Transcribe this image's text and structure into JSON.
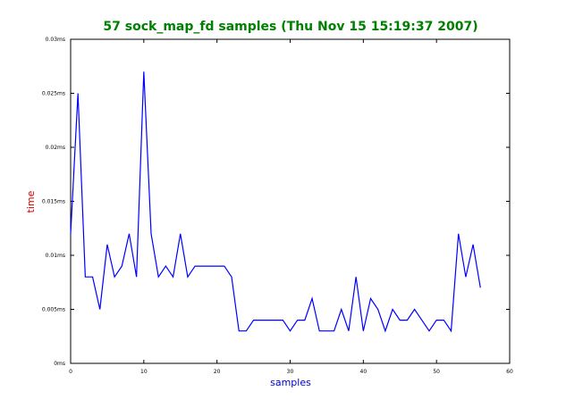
{
  "chart_data": {
    "type": "line",
    "title": "57 sock_map_fd samples (Thu Nov 15 15:19:37 2007)",
    "title_color": "#008000",
    "xlabel": "samples",
    "xlabel_color": "#0000cc",
    "ylabel": "time",
    "ylabel_color": "#cc0000",
    "line_color": "#0000ff",
    "xlim": [
      0,
      60
    ],
    "ylim": [
      0,
      0.03
    ],
    "x_ticks": [
      0,
      10,
      20,
      30,
      40,
      50,
      60
    ],
    "x_tick_labels": [
      "0",
      "10",
      "20",
      "30",
      "40",
      "50",
      "60"
    ],
    "y_ticks": [
      0,
      0.005,
      0.01,
      0.015,
      0.02,
      0.025,
      0.03
    ],
    "y_tick_labels": [
      "0ms",
      "0.005ms",
      "0.01ms",
      "0.015ms",
      "0.02ms",
      "0.025ms",
      "0.03ms"
    ],
    "grid": false,
    "series": [
      {
        "x": [
          0,
          1,
          2,
          3,
          4,
          5,
          6,
          7,
          8,
          9,
          10,
          11,
          12,
          13,
          14,
          15,
          16,
          17,
          18,
          19,
          20,
          21,
          22,
          23,
          24,
          25,
          26,
          27,
          28,
          29,
          30,
          31,
          32,
          33,
          34,
          35,
          36,
          37,
          38,
          39,
          40,
          41,
          42,
          43,
          44,
          45,
          46,
          47,
          48,
          49,
          50,
          51,
          52,
          53,
          54,
          55,
          56
        ],
        "values": [
          0.012,
          0.025,
          0.008,
          0.008,
          0.005,
          0.011,
          0.008,
          0.009,
          0.012,
          0.008,
          0.027,
          0.012,
          0.008,
          0.009,
          0.008,
          0.012,
          0.008,
          0.009,
          0.009,
          0.009,
          0.009,
          0.009,
          0.008,
          0.003,
          0.003,
          0.004,
          0.004,
          0.004,
          0.004,
          0.004,
          0.003,
          0.004,
          0.004,
          0.006,
          0.003,
          0.003,
          0.003,
          0.005,
          0.003,
          0.008,
          0.003,
          0.006,
          0.005,
          0.003,
          0.005,
          0.004,
          0.004,
          0.005,
          0.004,
          0.003,
          0.004,
          0.004,
          0.003,
          0.012,
          0.008,
          0.011,
          0.007
        ]
      }
    ]
  }
}
